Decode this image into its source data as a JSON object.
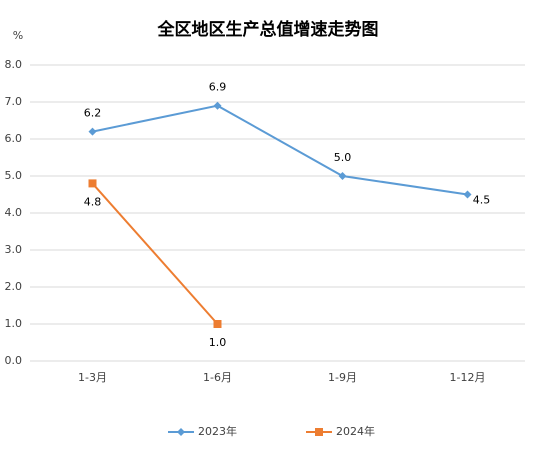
{
  "chart_data": {
    "type": "line",
    "title": "全区地区生产总值增速走势图",
    "y_unit": "%",
    "categories": [
      "1-3月",
      "1-6月",
      "1-9月",
      "1-12月"
    ],
    "series": [
      {
        "name": "2023年",
        "color": "#5b9bd5",
        "marker": "diamond",
        "values": [
          6.2,
          6.9,
          5.0,
          4.5
        ],
        "value_labels": [
          "6.2",
          "6.9",
          "5.0",
          "4.5"
        ]
      },
      {
        "name": "2024年",
        "color": "#ed7d31",
        "marker": "square",
        "values": [
          4.8,
          1.0,
          null,
          null
        ],
        "value_labels": [
          "4.8",
          "1.0",
          null,
          null
        ]
      }
    ],
    "ylim": [
      0,
      8
    ],
    "yticks": [
      {
        "value": 0,
        "label": "0.0"
      },
      {
        "value": 1,
        "label": "1.0"
      },
      {
        "value": 2,
        "label": "2.0"
      },
      {
        "value": 3,
        "label": "3.0"
      },
      {
        "value": 4,
        "label": "4.0"
      },
      {
        "value": 5,
        "label": "5.0"
      },
      {
        "value": 6,
        "label": "6.0"
      },
      {
        "value": 7,
        "label": "7.0"
      },
      {
        "value": 8,
        "label": "8.0"
      }
    ],
    "grid": true,
    "legend": "bottom"
  }
}
